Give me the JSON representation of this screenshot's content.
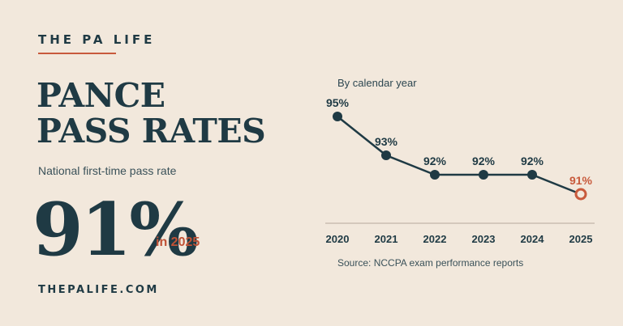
{
  "brand": "THE PA LIFE",
  "title_lines": [
    "PANCE",
    "PASS RATES"
  ],
  "subtitle": "National first-time pass rate",
  "headline_value": "91%",
  "headline_year": "in 2025",
  "website": "THEPALIFE.COM",
  "chart_caption": "By calendar year",
  "source": "Source: NCCPA exam performance reports",
  "colors": {
    "background": "#f2e8dc",
    "primary": "#1f3a44",
    "accent": "#c85a3c"
  },
  "chart_data": {
    "type": "line",
    "x": [
      "2020",
      "2021",
      "2022",
      "2023",
      "2024",
      "2025"
    ],
    "series": [
      {
        "values": [
          95,
          93,
          92,
          92,
          92,
          91
        ]
      }
    ],
    "data_labels": [
      "95%",
      "93%",
      "92%",
      "92%",
      "92%",
      "91%"
    ],
    "highlight_index": 5,
    "title": "",
    "xlabel": "",
    "ylabel": "",
    "grid": false
  }
}
